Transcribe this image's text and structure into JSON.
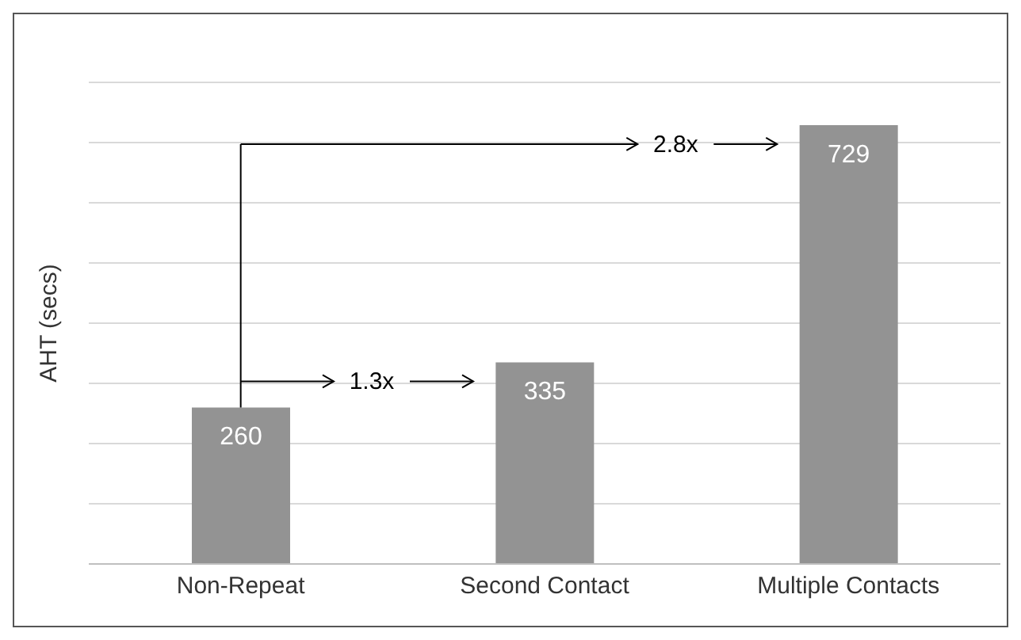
{
  "chart_data": {
    "type": "bar",
    "ylabel": "AHT (secs)",
    "categories": [
      "Non-Repeat",
      "Second Contact",
      "Multiple Contacts"
    ],
    "values": [
      260,
      335,
      729
    ],
    "color": "#939393",
    "data_labels": true,
    "ylim": [
      0,
      800
    ],
    "yticks": [
      {
        "value": 0,
        "label": null
      },
      {
        "value": 100,
        "label": null
      },
      {
        "value": 200,
        "label": null
      },
      {
        "value": 300,
        "label": null
      },
      {
        "value": 400,
        "label": null
      },
      {
        "value": 500,
        "label": null
      },
      {
        "value": 600,
        "label": null
      },
      {
        "value": 700,
        "label": null
      },
      {
        "value": 800,
        "label": null
      }
    ],
    "tick_labels": "x",
    "grid": "y",
    "annotations": [
      "1.3x",
      "2.8x"
    ]
  }
}
